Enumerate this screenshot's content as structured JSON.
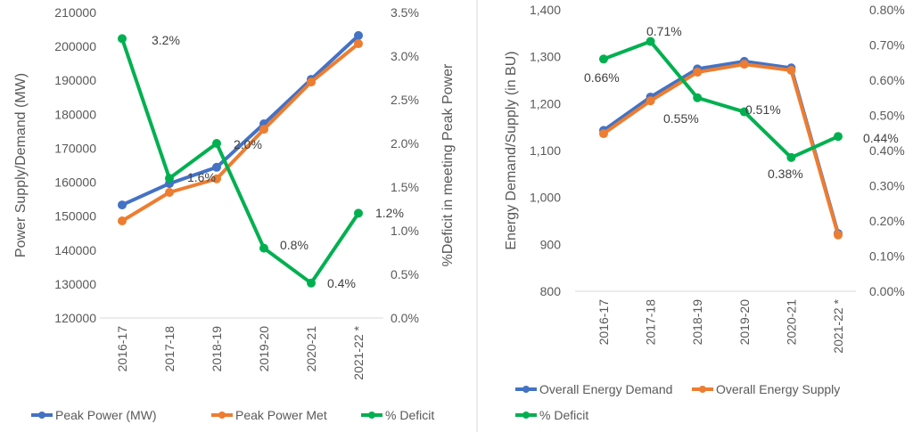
{
  "chart_data": [
    {
      "type": "line",
      "categories": [
        "2016-17",
        "2017-18",
        "2018-19",
        "2019-20",
        "2020-21",
        "2021-22 *"
      ],
      "ylabel": "Power Supply/Demand (MW)",
      "y2label": "%Deficit in meeting Peak Power",
      "ylim": [
        120000,
        210000
      ],
      "yticks": [
        "120000",
        "130000",
        "140000",
        "150000",
        "160000",
        "170000",
        "180000",
        "190000",
        "200000",
        "210000"
      ],
      "y2lim": [
        0,
        3.5
      ],
      "y2ticks": [
        "0.0%",
        "0.5%",
        "1.0%",
        "1.5%",
        "2.0%",
        "2.5%",
        "3.0%",
        "3.5%"
      ],
      "grid": false,
      "legend": "bottom",
      "series": [
        {
          "name": "Peak Power (MW)",
          "axis": "left",
          "color": "#4472C4",
          "values": [
            153300,
            159600,
            164400,
            177200,
            190300,
            203200
          ]
        },
        {
          "name": "Peak Power Met",
          "axis": "left",
          "color": "#ED7D31",
          "values": [
            148600,
            157000,
            161000,
            175600,
            189500,
            200800
          ]
        },
        {
          "name": "% Deficit",
          "axis": "right",
          "color": "#00B050",
          "values": [
            3.2,
            1.6,
            2.0,
            0.8,
            0.4,
            1.2
          ],
          "labels": [
            "3.2%",
            "1.6%",
            "2.0%",
            "0.8%",
            "0.4%",
            "1.2%"
          ]
        }
      ]
    },
    {
      "type": "line",
      "categories": [
        "2016-17",
        "2017-18",
        "2018-19",
        "2019-20",
        "2020-21",
        "2021-22 *"
      ],
      "ylabel": "Energy Demand/Supply (in BU)",
      "ylim": [
        800,
        1400
      ],
      "yticks": [
        "800",
        "900",
        "1,000",
        "1,100",
        "1,200",
        "1,300",
        "1,400"
      ],
      "y2lim": [
        0,
        0.8
      ],
      "y2ticks": [
        "0.00%",
        "0.10%",
        "0.20%",
        "0.30%",
        "0.40%",
        "0.50%",
        "0.60%",
        "0.70%",
        "0.80%"
      ],
      "grid": false,
      "legend": "bottom",
      "series": [
        {
          "name": "Overall Energy Demand",
          "axis": "left",
          "color": "#4472C4",
          "values": [
            1143,
            1214,
            1274,
            1290,
            1276,
            923
          ]
        },
        {
          "name": "Overall Energy Supply",
          "axis": "left",
          "color": "#ED7D31",
          "values": [
            1136,
            1206,
            1267,
            1284,
            1271,
            920
          ]
        },
        {
          "name": "% Deficit",
          "axis": "right",
          "color": "#00B050",
          "values": [
            0.66,
            0.71,
            0.55,
            0.51,
            0.38,
            0.44
          ],
          "labels": [
            "0.66%",
            "0.71%",
            "0.55%",
            "0.51%",
            "0.38%",
            "0.44%"
          ]
        }
      ]
    }
  ]
}
